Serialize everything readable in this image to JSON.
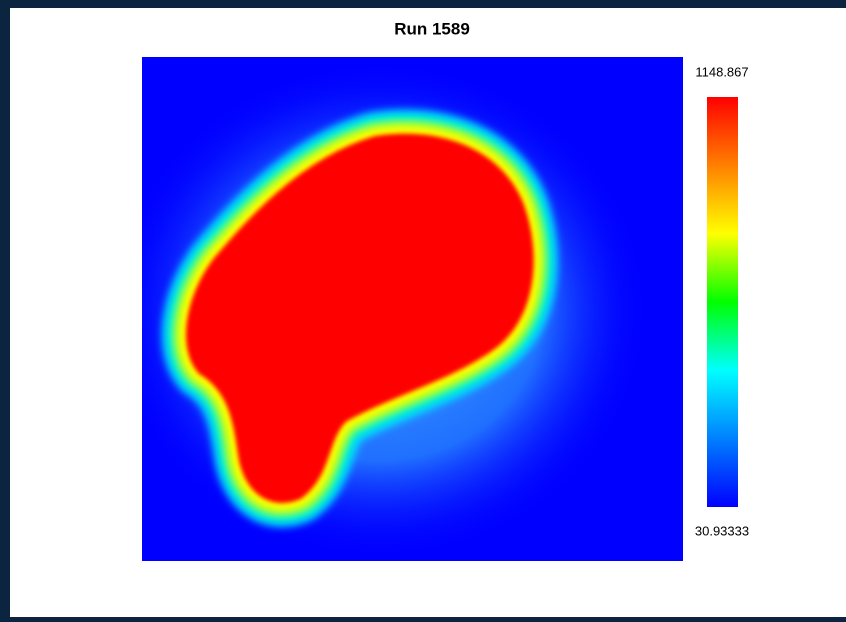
{
  "chart_data": {
    "type": "heatmap",
    "title": "Run 1589",
    "clim": [
      30.93333,
      1148.867
    ],
    "colormap": [
      "#0000ff",
      "#0080ff",
      "#00ffff",
      "#00ff00",
      "#ffff00",
      "#ff8000",
      "#ff0000"
    ]
  }
}
